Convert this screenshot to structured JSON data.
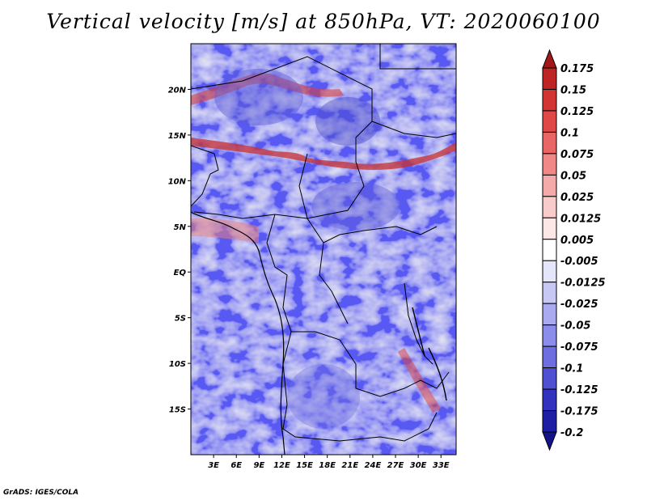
{
  "title": "Vertical velocity [m/s] at 850hPa, VT: 2020060100",
  "credit": "GrADS: IGES/COLA",
  "map": {
    "lon_range": [
      0,
      35
    ],
    "lat_range": [
      -20,
      25
    ],
    "lon_ticks": [
      "3E",
      "6E",
      "9E",
      "12E",
      "15E",
      "18E",
      "21E",
      "24E",
      "27E",
      "30E",
      "33E"
    ],
    "lon_tick_values": [
      3,
      6,
      9,
      12,
      15,
      18,
      21,
      24,
      27,
      30,
      33
    ],
    "lat_ticks": [
      "20N",
      "15N",
      "10N",
      "5N",
      "EQ",
      "5S",
      "10S",
      "15S"
    ],
    "lat_tick_values": [
      20,
      15,
      10,
      5,
      0,
      -5,
      -10,
      -15
    ]
  },
  "colorbar": {
    "labels": [
      "0.175",
      "0.15",
      "0.125",
      "0.1",
      "0.075",
      "0.05",
      "0.025",
      "0.0125",
      "0.005",
      "-0.005",
      "-0.0125",
      "-0.025",
      "-0.05",
      "-0.075",
      "-0.1",
      "-0.125",
      "-0.175",
      "-0.2"
    ],
    "colors": [
      "#a01818",
      "#be2424",
      "#d23434",
      "#e04848",
      "#e86666",
      "#f08888",
      "#f5aaaa",
      "#f9cccc",
      "#fce6e6",
      "#ffffff",
      "#e6e6fa",
      "#c8c8f5",
      "#aaaaf0",
      "#8c8ceb",
      "#6e6ee1",
      "#5050d2",
      "#3232be",
      "#1e1ea5",
      "#14148a"
    ]
  }
}
